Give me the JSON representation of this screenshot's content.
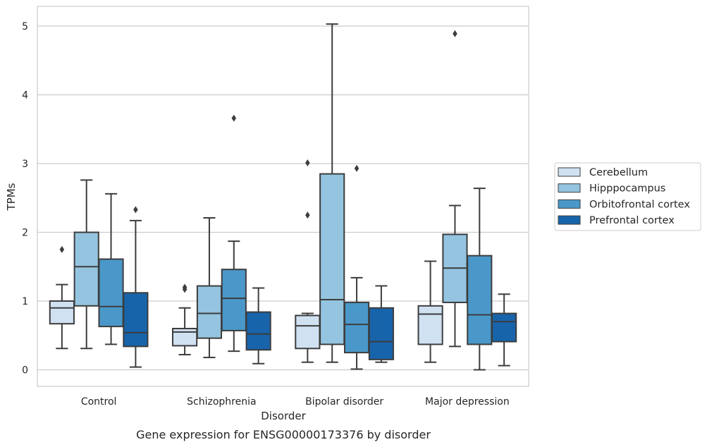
{
  "caption": "Gene expression for ENSG00000173376 by disorder",
  "chart_data": {
    "type": "box",
    "xlabel": "Disorder",
    "ylabel": "TPMs",
    "ylim": [
      -0.25,
      5.3
    ],
    "yticks": [
      0,
      1,
      2,
      3,
      4,
      5
    ],
    "grid": "horizontal",
    "legend_position": "right",
    "categories": [
      "Control",
      "Schizophrenia",
      "Bipolar disorder",
      "Major depression"
    ],
    "series": [
      {
        "name": "Cerebellum",
        "color": "#d0e1f2",
        "boxes": [
          {
            "whislo": 0.31,
            "q1": 0.67,
            "med": 0.9,
            "q3": 1.0,
            "whishi": 1.24,
            "fliers": [
              1.75
            ]
          },
          {
            "whislo": 0.22,
            "q1": 0.35,
            "med": 0.55,
            "q3": 0.6,
            "whishi": 0.9,
            "fliers": [
              1.17,
              1.2
            ]
          },
          {
            "whislo": 0.11,
            "q1": 0.31,
            "med": 0.64,
            "q3": 0.79,
            "whishi": 0.82,
            "fliers": [
              2.25,
              3.01
            ]
          },
          {
            "whislo": 0.11,
            "q1": 0.37,
            "med": 0.81,
            "q3": 0.93,
            "whishi": 1.58,
            "fliers": []
          }
        ]
      },
      {
        "name": "Hipppocampus",
        "color": "#94c4df",
        "boxes": [
          {
            "whislo": 0.31,
            "q1": 0.93,
            "med": 1.5,
            "q3": 2.0,
            "whishi": 2.76,
            "fliers": []
          },
          {
            "whislo": 0.18,
            "q1": 0.46,
            "med": 0.82,
            "q3": 1.22,
            "whishi": 2.21,
            "fliers": []
          },
          {
            "whislo": 0.11,
            "q1": 0.37,
            "med": 1.02,
            "q3": 2.85,
            "whishi": 5.03,
            "fliers": []
          },
          {
            "whislo": 0.34,
            "q1": 0.98,
            "med": 1.48,
            "q3": 1.97,
            "whishi": 2.39,
            "fliers": [
              4.89
            ]
          }
        ]
      },
      {
        "name": "Orbitofrontal cortex",
        "color": "#4a98c9",
        "boxes": [
          {
            "whislo": 0.37,
            "q1": 0.63,
            "med": 0.92,
            "q3": 1.61,
            "whishi": 2.56,
            "fliers": []
          },
          {
            "whislo": 0.27,
            "q1": 0.57,
            "med": 1.04,
            "q3": 1.46,
            "whishi": 1.87,
            "fliers": [
              3.66
            ]
          },
          {
            "whislo": 0.01,
            "q1": 0.25,
            "med": 0.66,
            "q3": 0.98,
            "whishi": 1.34,
            "fliers": [
              2.93
            ]
          },
          {
            "whislo": 0.0,
            "q1": 0.37,
            "med": 0.8,
            "q3": 1.66,
            "whishi": 2.64,
            "fliers": []
          }
        ]
      },
      {
        "name": "Prefrontal cortex",
        "color": "#1764ab",
        "boxes": [
          {
            "whislo": 0.04,
            "q1": 0.34,
            "med": 0.54,
            "q3": 1.12,
            "whishi": 2.17,
            "fliers": [
              2.33
            ]
          },
          {
            "whislo": 0.09,
            "q1": 0.29,
            "med": 0.52,
            "q3": 0.84,
            "whishi": 1.19,
            "fliers": []
          },
          {
            "whislo": 0.11,
            "q1": 0.15,
            "med": 0.41,
            "q3": 0.9,
            "whishi": 1.22,
            "fliers": []
          },
          {
            "whislo": 0.06,
            "q1": 0.41,
            "med": 0.7,
            "q3": 0.82,
            "whishi": 1.1,
            "fliers": []
          }
        ]
      }
    ]
  }
}
